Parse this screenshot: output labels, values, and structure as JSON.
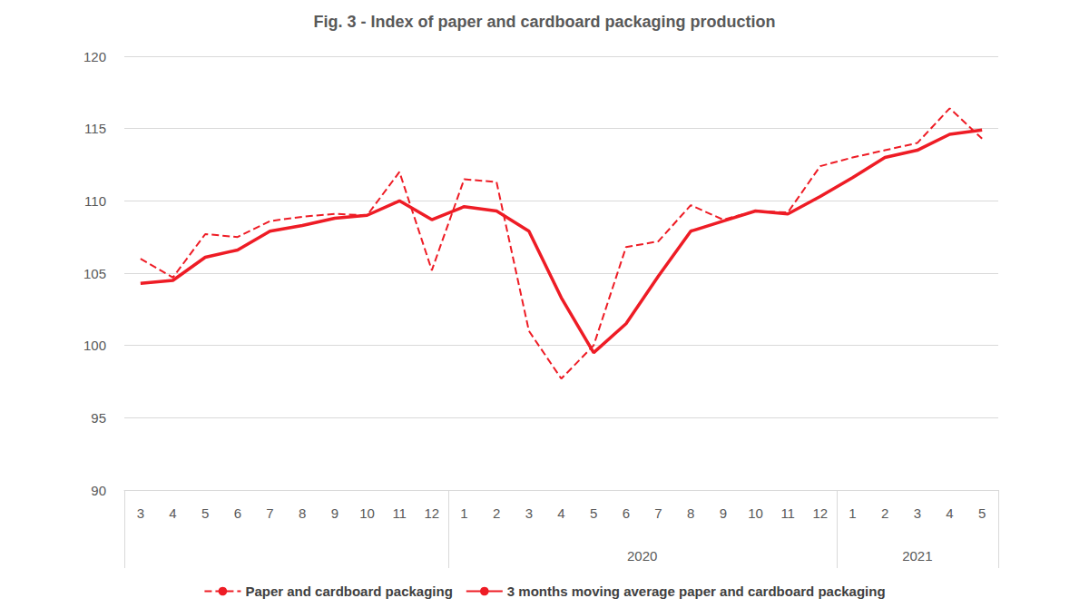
{
  "chart_data": {
    "type": "line",
    "title": "Fig. 3 - Index of paper and cardboard packaging production",
    "categories": [
      "3",
      "4",
      "5",
      "6",
      "7",
      "8",
      "9",
      "10",
      "11",
      "12",
      "1",
      "2",
      "3",
      "4",
      "5",
      "6",
      "7",
      "8",
      "9",
      "10",
      "11",
      "12",
      "1",
      "2",
      "3",
      "4",
      "5"
    ],
    "category_groups": [
      {
        "label": null,
        "size": 10
      },
      {
        "label": "2020",
        "size": 12
      },
      {
        "label": "2021",
        "size": 5
      }
    ],
    "series": [
      {
        "name": "Paper and cardboard packaging",
        "color": "#ee1c25",
        "line_style": "dashed",
        "marker": "none",
        "values": [
          106.0,
          104.7,
          107.7,
          107.5,
          108.6,
          108.9,
          109.1,
          109.0,
          112.0,
          105.2,
          111.5,
          111.3,
          101.0,
          97.7,
          100.0,
          106.8,
          107.2,
          109.7,
          108.7,
          109.3,
          109.2,
          112.4,
          113.0,
          113.5,
          114.0,
          116.4,
          114.3
        ]
      },
      {
        "name": "3 months moving average paper and cardboard packaging",
        "color": "#ee1c25",
        "line_style": "solid",
        "marker": "none",
        "values": [
          104.3,
          104.5,
          106.1,
          106.6,
          107.9,
          108.3,
          108.8,
          109.0,
          110.0,
          108.7,
          109.6,
          109.3,
          107.9,
          103.3,
          99.5,
          101.5,
          104.8,
          107.9,
          108.6,
          109.3,
          109.1,
          110.3,
          111.6,
          113.0,
          113.5,
          114.6,
          114.9
        ]
      }
    ],
    "ylim": [
      90,
      120
    ],
    "yticks": [
      90,
      95,
      100,
      105,
      110,
      115,
      120
    ],
    "grid": true,
    "legend": "bottom"
  }
}
